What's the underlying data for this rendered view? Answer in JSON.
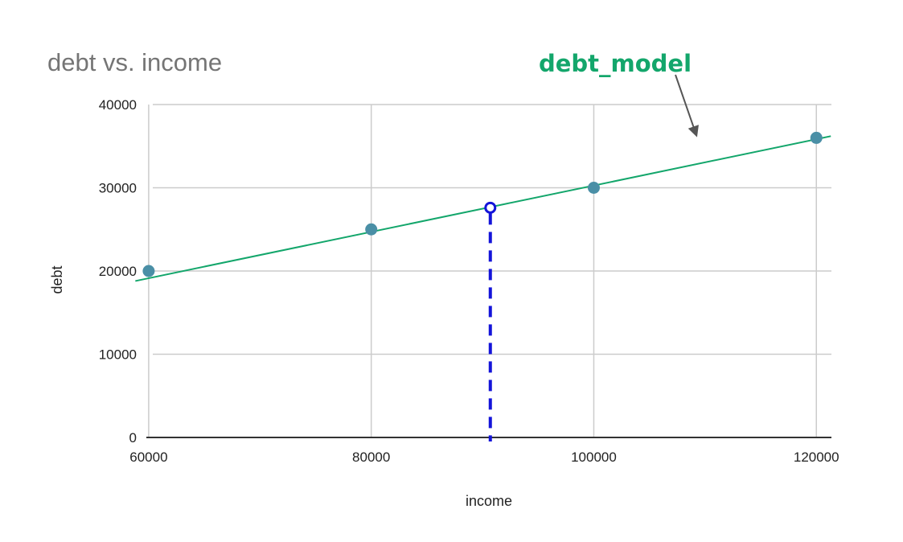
{
  "chart_data": {
    "type": "scatter",
    "title": "debt vs. income",
    "xlabel": "income",
    "ylabel": "debt",
    "xlim": [
      59500,
      121500
    ],
    "ylim": [
      0,
      40000
    ],
    "xticks": [
      60000,
      80000,
      100000,
      120000
    ],
    "yticks": [
      0,
      10000,
      20000,
      30000,
      40000
    ],
    "grid": true,
    "points": [
      {
        "x": 60000,
        "y": 20000
      },
      {
        "x": 80000,
        "y": 25000
      },
      {
        "x": 100000,
        "y": 30000
      },
      {
        "x": 120000,
        "y": 36000
      }
    ],
    "trendline": {
      "label": "debt_model",
      "start": {
        "x": 58800,
        "y": 18800
      },
      "end": {
        "x": 121300,
        "y": 36200
      }
    },
    "highlight": {
      "x": 90700,
      "y": 27600
    },
    "colors": {
      "points": "#4a8fa6",
      "trendline": "#13a66b",
      "highlight": "#1414d9",
      "annotation": "#13a66b",
      "arrow": "#555555",
      "grid": "#cccccc",
      "axis": "#333333"
    }
  }
}
